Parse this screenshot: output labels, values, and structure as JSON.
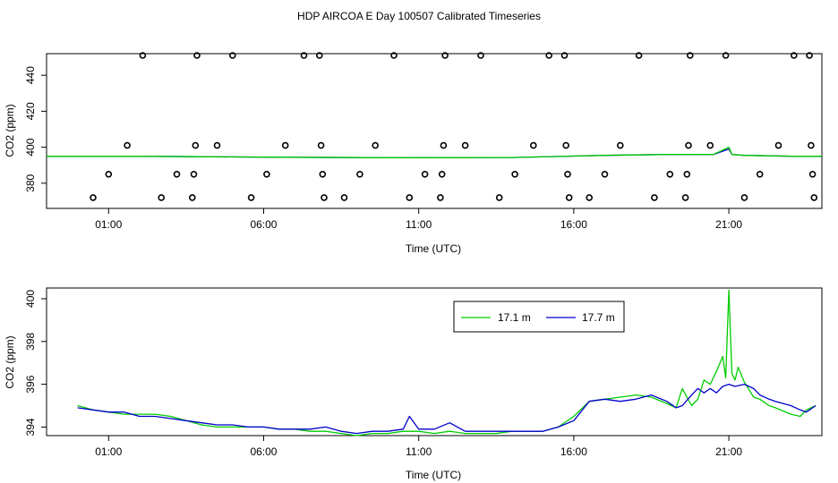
{
  "figure": {
    "title": "HDP AIRCOA E  Day 100507  Calibrated Timeseries"
  },
  "chart_data": [
    {
      "type": "scatter",
      "xlabel": "Time (UTC)",
      "ylabel": "CO2 (ppm)",
      "x_unit": "hours UTC",
      "xlim": [
        -1.0,
        24.0
      ],
      "ylim": [
        366,
        452
      ],
      "x_ticks": [
        1,
        6,
        11,
        16,
        21
      ],
      "x_tick_labels": [
        "01:00",
        "06:00",
        "11:00",
        "16:00",
        "21:00"
      ],
      "y_ticks": [
        380,
        400,
        420,
        440
      ],
      "y_tick_labels": [
        "380",
        "400",
        "420",
        "440"
      ],
      "grid": false,
      "points": [
        [
          0.5,
          372
        ],
        [
          1.0,
          385
        ],
        [
          1.6,
          401
        ],
        [
          2.1,
          451
        ],
        [
          2.7,
          372
        ],
        [
          3.2,
          385
        ],
        [
          3.7,
          372
        ],
        [
          3.75,
          385
        ],
        [
          3.8,
          401
        ],
        [
          3.85,
          451
        ],
        [
          4.5,
          401
        ],
        [
          5.0,
          451
        ],
        [
          5.6,
          372
        ],
        [
          6.1,
          385
        ],
        [
          6.7,
          401
        ],
        [
          7.3,
          451
        ],
        [
          7.8,
          451
        ],
        [
          7.85,
          401
        ],
        [
          7.9,
          385
        ],
        [
          7.95,
          372
        ],
        [
          8.6,
          372
        ],
        [
          9.1,
          385
        ],
        [
          9.6,
          401
        ],
        [
          10.2,
          451
        ],
        [
          10.7,
          372
        ],
        [
          11.2,
          385
        ],
        [
          11.7,
          372
        ],
        [
          11.75,
          385
        ],
        [
          11.8,
          401
        ],
        [
          11.85,
          451
        ],
        [
          12.5,
          401
        ],
        [
          13.0,
          451
        ],
        [
          13.6,
          372
        ],
        [
          14.1,
          385
        ],
        [
          14.7,
          401
        ],
        [
          15.2,
          451
        ],
        [
          15.7,
          451
        ],
        [
          15.75,
          401
        ],
        [
          15.8,
          385
        ],
        [
          15.85,
          372
        ],
        [
          16.5,
          372
        ],
        [
          17.0,
          385
        ],
        [
          17.5,
          401
        ],
        [
          18.1,
          451
        ],
        [
          18.6,
          372
        ],
        [
          19.1,
          385
        ],
        [
          19.6,
          372
        ],
        [
          19.65,
          385
        ],
        [
          19.7,
          401
        ],
        [
          19.75,
          451
        ],
        [
          20.4,
          401
        ],
        [
          20.9,
          451
        ],
        [
          21.5,
          372
        ],
        [
          22.0,
          385
        ],
        [
          22.6,
          401
        ],
        [
          23.1,
          451
        ],
        [
          23.6,
          451
        ],
        [
          23.65,
          401
        ],
        [
          23.7,
          385
        ],
        [
          23.75,
          372
        ]
      ],
      "line_series": [
        {
          "color": "#0000cc",
          "x": [
            -1,
            2,
            6,
            10,
            14,
            17,
            19,
            20.5,
            21.0,
            21.1,
            21.5,
            23.0,
            24.0
          ],
          "y": [
            395,
            395,
            394.5,
            394.2,
            394.3,
            395.5,
            396,
            396,
            399,
            396,
            395.5,
            395,
            395
          ]
        },
        {
          "color": "#00cc00",
          "x": [
            -1,
            2,
            6,
            10,
            14,
            17,
            19,
            20.5,
            21.0,
            21.1,
            21.5,
            23.0,
            24.0
          ],
          "y": [
            395,
            395,
            394.5,
            394.2,
            394.3,
            395.5,
            396,
            396,
            400,
            396,
            395.5,
            395,
            395
          ]
        }
      ]
    },
    {
      "type": "line",
      "xlabel": "Time (UTC)",
      "ylabel": "CO2 (ppm)",
      "x_unit": "hours UTC",
      "xlim": [
        -1.0,
        24.0
      ],
      "ylim": [
        393.6,
        400.5
      ],
      "x_ticks": [
        1,
        6,
        11,
        16,
        21
      ],
      "x_tick_labels": [
        "01:00",
        "06:00",
        "11:00",
        "16:00",
        "21:00"
      ],
      "y_ticks": [
        394,
        396,
        398,
        400
      ],
      "y_tick_labels": [
        "394",
        "396",
        "398",
        "400"
      ],
      "grid": false,
      "legend": {
        "placement": "top-right"
      },
      "series": [
        {
          "name": "17.1 m",
          "color": "#00cc00",
          "x": [
            0.0,
            0.5,
            1.0,
            1.5,
            2.0,
            2.5,
            3.0,
            3.5,
            4.0,
            4.5,
            5.0,
            5.5,
            6.0,
            6.5,
            7.0,
            7.5,
            8.0,
            8.5,
            9.0,
            9.5,
            10.0,
            10.5,
            11.0,
            11.5,
            12.0,
            12.5,
            13.0,
            13.5,
            14.0,
            14.5,
            15.0,
            15.5,
            16.0,
            16.5,
            17.0,
            17.5,
            18.0,
            18.5,
            19.0,
            19.3,
            19.5,
            19.8,
            20.0,
            20.2,
            20.4,
            20.6,
            20.8,
            20.9,
            21.0,
            21.1,
            21.2,
            21.3,
            21.5,
            21.8,
            22.0,
            22.3,
            22.5,
            23.0,
            23.3,
            23.5,
            23.8
          ],
          "y": [
            395.0,
            394.8,
            394.7,
            394.6,
            394.6,
            394.6,
            394.5,
            394.3,
            394.1,
            394.0,
            394.0,
            394.0,
            394.0,
            393.9,
            393.9,
            393.8,
            393.8,
            393.7,
            393.6,
            393.7,
            393.7,
            393.8,
            393.8,
            393.7,
            393.8,
            393.7,
            393.7,
            393.7,
            393.8,
            393.8,
            393.8,
            394.0,
            394.5,
            395.2,
            395.3,
            395.4,
            395.5,
            395.4,
            395.1,
            394.9,
            395.8,
            395.0,
            395.3,
            396.2,
            396.0,
            396.6,
            397.3,
            396.3,
            400.4,
            396.5,
            396.2,
            396.8,
            396.1,
            395.4,
            395.3,
            395.0,
            394.9,
            394.6,
            394.5,
            394.8,
            395.0
          ]
        },
        {
          "name": "17.7 m",
          "color": "#0000cc",
          "x": [
            0.0,
            0.5,
            1.0,
            1.5,
            2.0,
            2.5,
            3.0,
            3.5,
            4.0,
            4.5,
            5.0,
            5.5,
            6.0,
            6.5,
            7.0,
            7.5,
            8.0,
            8.5,
            9.0,
            9.5,
            10.0,
            10.5,
            10.7,
            11.0,
            11.5,
            12.0,
            12.5,
            13.0,
            13.5,
            14.0,
            14.5,
            15.0,
            15.5,
            16.0,
            16.5,
            17.0,
            17.5,
            18.0,
            18.5,
            19.0,
            19.3,
            19.5,
            19.8,
            20.0,
            20.2,
            20.4,
            20.6,
            20.8,
            21.0,
            21.2,
            21.5,
            21.8,
            22.0,
            22.3,
            22.5,
            23.0,
            23.3,
            23.5,
            23.8
          ],
          "y": [
            394.9,
            394.8,
            394.7,
            394.7,
            394.5,
            394.5,
            394.4,
            394.3,
            394.2,
            394.1,
            394.1,
            394.0,
            394.0,
            393.9,
            393.9,
            393.9,
            394.0,
            393.8,
            393.7,
            393.8,
            393.8,
            393.9,
            394.5,
            393.9,
            393.9,
            394.2,
            393.8,
            393.8,
            393.8,
            393.8,
            393.8,
            393.8,
            394.0,
            394.3,
            395.2,
            395.3,
            395.2,
            395.3,
            395.5,
            395.2,
            394.9,
            395.0,
            395.5,
            395.8,
            395.6,
            395.8,
            395.6,
            395.9,
            396.0,
            395.9,
            396.0,
            395.8,
            395.5,
            395.3,
            395.2,
            395.0,
            394.8,
            394.7,
            395.0
          ]
        }
      ]
    }
  ]
}
